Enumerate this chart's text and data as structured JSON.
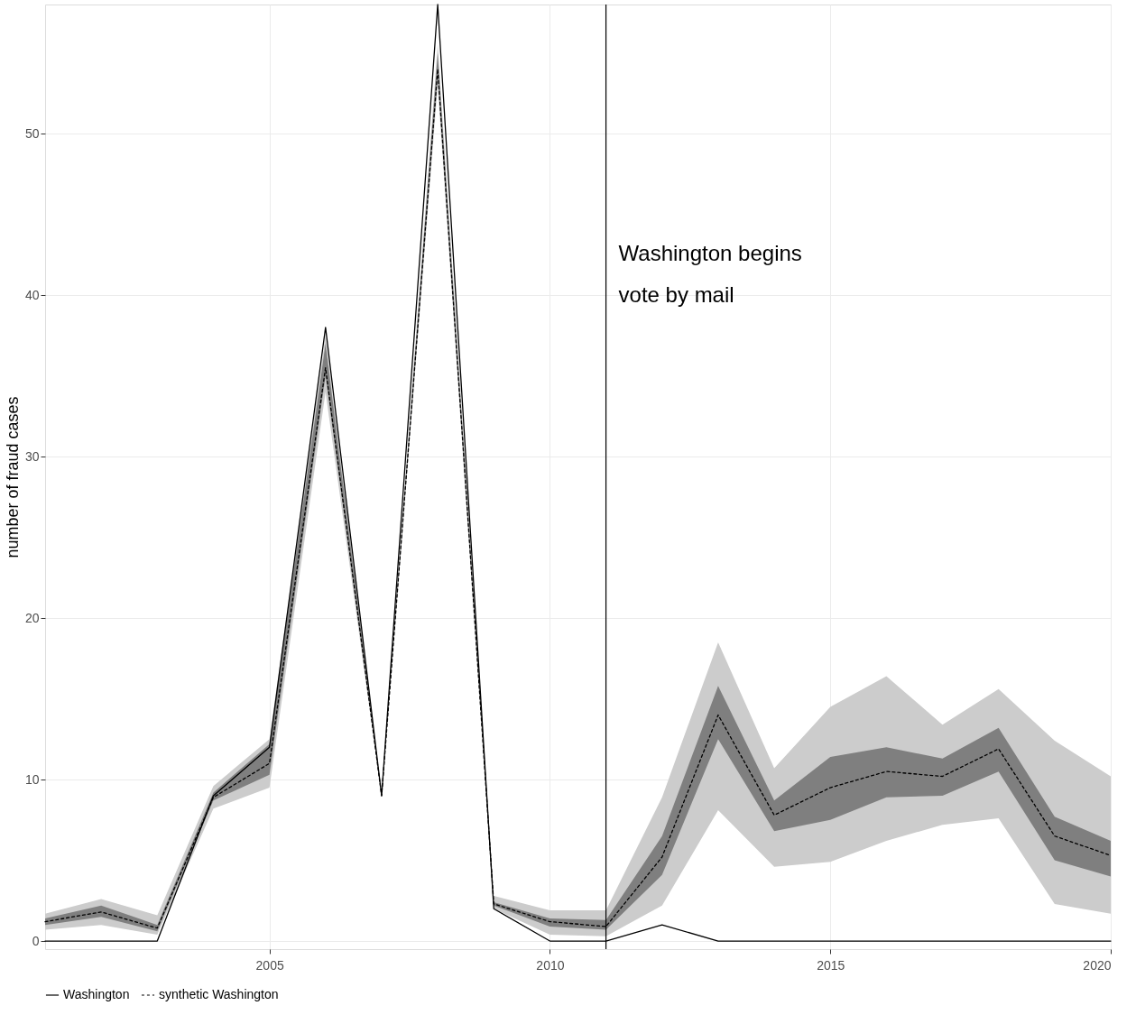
{
  "chart_data": {
    "type": "line",
    "ylabel": "number of fraud cases",
    "x": [
      2001,
      2002,
      2003,
      2004,
      2005,
      2006,
      2007,
      2008,
      2009,
      2010,
      2011,
      2012,
      2013,
      2014,
      2015,
      2016,
      2017,
      2018,
      2019,
      2020
    ],
    "series": [
      {
        "name": "Washington",
        "color": "#000000",
        "line_style": "solid",
        "values": [
          0,
          0,
          0,
          9,
          12,
          38,
          9,
          58,
          2,
          0,
          0,
          1,
          0,
          0,
          0,
          0,
          0,
          0,
          0,
          0
        ]
      },
      {
        "name": "synthetic Washington",
        "color": "#000000",
        "line_style": "dashed",
        "values": [
          1.2,
          1.8,
          0.8,
          8.9,
          11,
          35.5,
          9,
          54,
          2.3,
          1.2,
          0.9,
          5.2,
          14,
          7.8,
          9.5,
          10.5,
          10.2,
          11.9,
          6.5,
          5.3
        ]
      },
      {
        "type": "area",
        "color": "#cccccc",
        "values": [
          null,
          null,
          null,
          null,
          null,
          null,
          null,
          null,
          null,
          null,
          null,
          null,
          null,
          null,
          null,
          null,
          null,
          null,
          null,
          null
        ],
        "lower": [
          0.7,
          1.0,
          0.4,
          8.2,
          9.5,
          34,
          9,
          53,
          2.0,
          0.4,
          0.3,
          2.2,
          8.1,
          4.6,
          4.9,
          6.2,
          7.2,
          7.6,
          2.3,
          1.7
        ],
        "upper": [
          1.7,
          2.6,
          1.6,
          9.6,
          12.5,
          37.5,
          9,
          55.5,
          2.8,
          1.9,
          1.9,
          8.9,
          18.5,
          10.7,
          14.5,
          16.4,
          13.4,
          15.6,
          12.4,
          10.2
        ]
      },
      {
        "type": "area",
        "color": "#7f7f7f",
        "values": [
          null,
          null,
          null,
          null,
          null,
          null,
          null,
          null,
          null,
          null,
          null,
          null,
          null,
          null,
          null,
          null,
          null,
          null,
          null,
          null
        ],
        "lower": [
          1.0,
          1.5,
          0.6,
          8.7,
          10.3,
          35,
          9,
          53.5,
          2.2,
          0.9,
          0.7,
          4.1,
          12.5,
          6.8,
          7.5,
          8.9,
          9.0,
          10.5,
          5.0,
          4.0
        ],
        "upper": [
          1.4,
          2.2,
          1.0,
          9.2,
          12.2,
          37,
          9,
          55,
          2.4,
          1.4,
          1.3,
          6.5,
          15.8,
          8.7,
          11.4,
          12.0,
          11.3,
          13.2,
          7.7,
          6.2
        ]
      }
    ],
    "xlim": [
      2001,
      2020
    ],
    "xticks": [
      2005,
      2010,
      2015,
      2020
    ],
    "ylim": [
      -0.5,
      58
    ],
    "yticks": [
      0,
      10,
      20,
      30,
      40,
      50
    ],
    "ref_lines": [
      {
        "axis": "x",
        "value": 2011,
        "label": "Washington begins\n vote by mail",
        "color": "#000000"
      }
    ],
    "grid": true,
    "legend": "bottom",
    "marker": "none"
  }
}
